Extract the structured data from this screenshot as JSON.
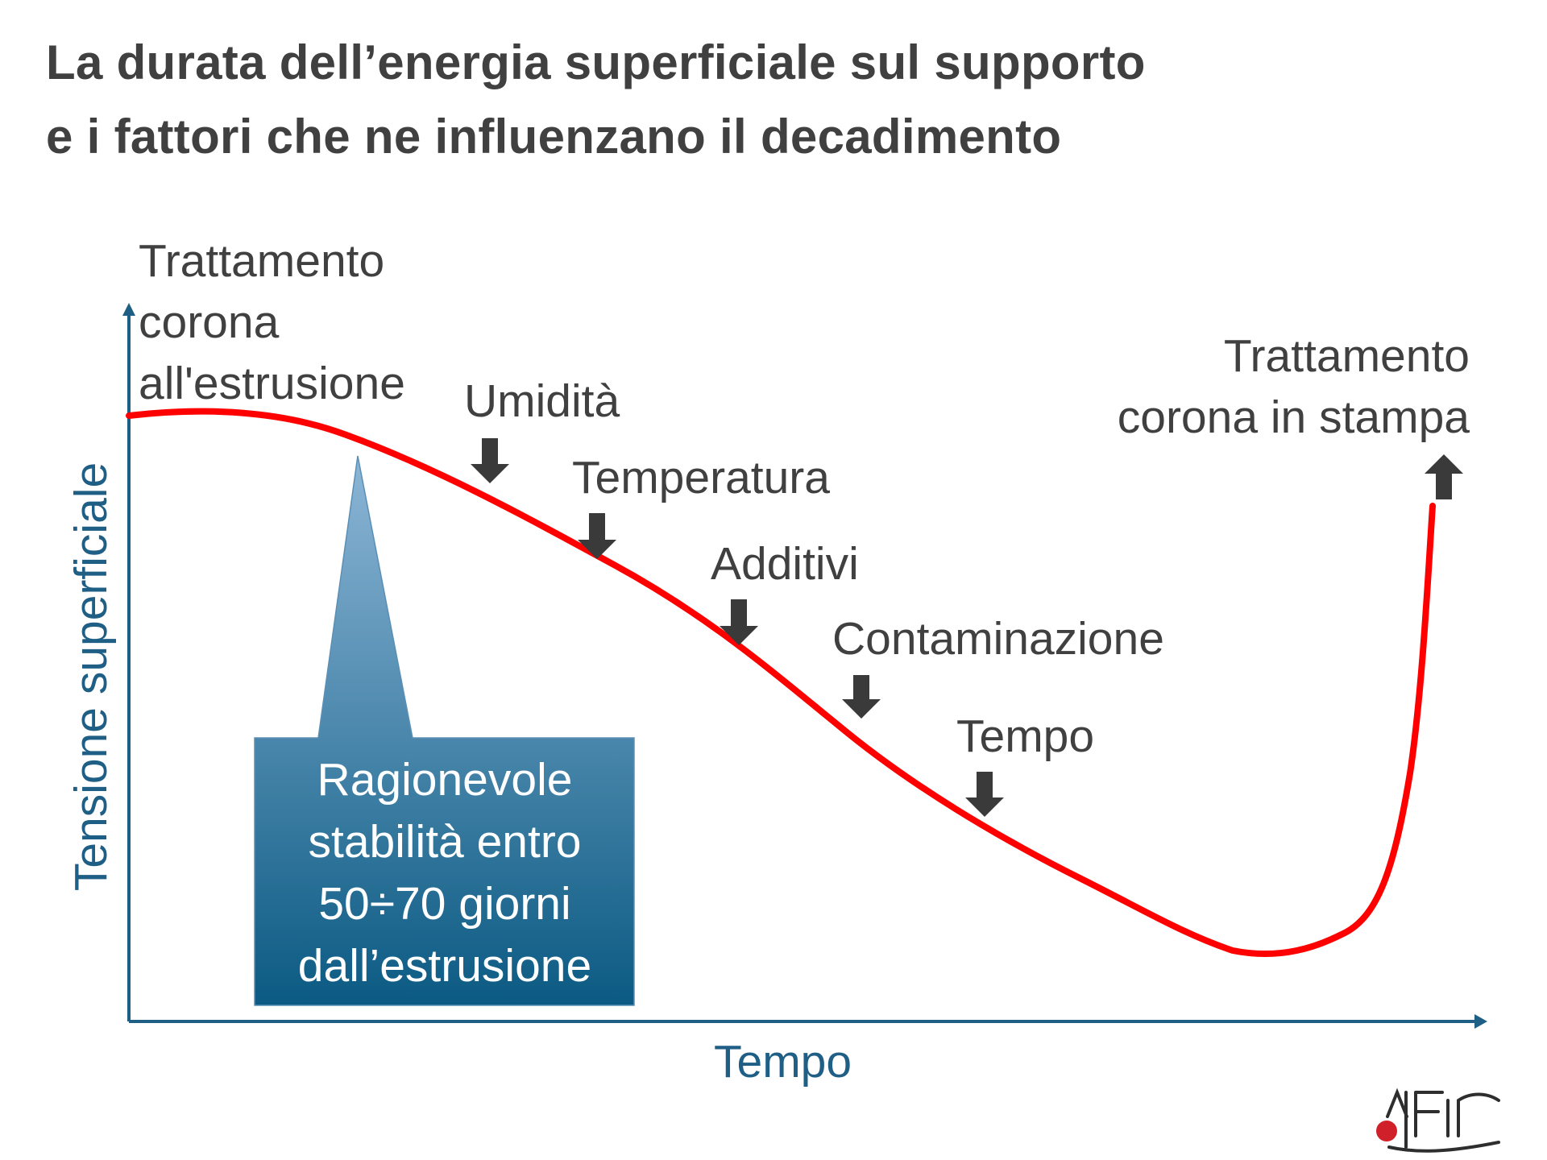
{
  "title": {
    "line1": "La durata dell’energia superficiale sul supporto",
    "line2": "e i fattori che ne influenzano il decadimento"
  },
  "axes": {
    "y_label": "Tensione superficiale",
    "x_label": "Tempo",
    "color": "#1f5f86"
  },
  "labels": {
    "start": [
      "Trattamento",
      "corona",
      "all'estrusione"
    ],
    "end": [
      "Trattamento",
      "corona in stampa"
    ]
  },
  "factors": [
    "Umidità",
    "Temperatura",
    "Additivi",
    "Contaminazione",
    "Tempo"
  ],
  "callout": [
    "Ragionevole",
    "stabilità entro",
    "50÷70 giorni",
    "dall’estrusione"
  ],
  "logo": {
    "text": "JAFIF"
  },
  "colors": {
    "curve": "#ff0000",
    "text": "#404040",
    "callout_top": "#8db6d6",
    "callout_bottom": "#0b5a83",
    "arrow": "#3a3a3a"
  }
}
